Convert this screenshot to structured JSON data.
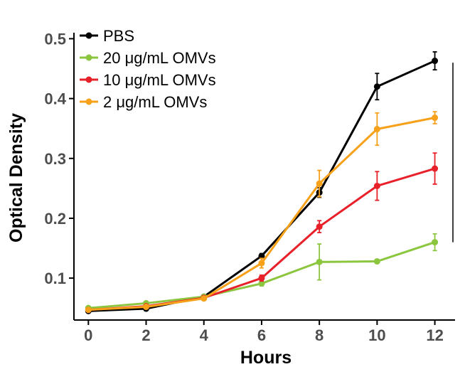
{
  "chart_data": {
    "type": "line",
    "xlabel": "Hours",
    "ylabel": "Optical Density",
    "x": [
      0,
      2,
      4,
      6,
      8,
      10,
      12
    ],
    "x_ticks": [
      "0",
      "2",
      "4",
      "6",
      "8",
      "10",
      "12"
    ],
    "y_ticks": [
      "0.1",
      "0.2",
      "0.3",
      "0.4",
      "0.5"
    ],
    "xlim": [
      -0.5,
      12.7
    ],
    "ylim": [
      0.03,
      0.51
    ],
    "grid": false,
    "legend_position": "top-left",
    "series": [
      {
        "name": "PBS",
        "color": "#000000",
        "values": [
          0.045,
          0.049,
          0.069,
          0.137,
          0.243,
          0.42,
          0.463
        ],
        "errors": [
          0.002,
          0.002,
          0.003,
          0.004,
          0.008,
          0.022,
          0.015
        ]
      },
      {
        "name": "20 μg/mL OMVs",
        "color": "#8cc63f",
        "values": [
          0.05,
          0.058,
          0.069,
          0.091,
          0.127,
          0.128,
          0.16
        ],
        "errors": [
          0.002,
          0.003,
          0.003,
          0.004,
          0.03,
          0.003,
          0.014
        ]
      },
      {
        "name": "10 μg/mL OMVs",
        "color": "#e8202a",
        "values": [
          0.047,
          0.053,
          0.067,
          0.1,
          0.186,
          0.254,
          0.283
        ],
        "errors": [
          0.002,
          0.002,
          0.003,
          0.005,
          0.01,
          0.024,
          0.026
        ]
      },
      {
        "name": "2 μg/mL OMVs",
        "color": "#f7a11a",
        "values": [
          0.047,
          0.052,
          0.066,
          0.125,
          0.258,
          0.349,
          0.368
        ],
        "errors": [
          0.002,
          0.002,
          0.003,
          0.008,
          0.022,
          0.027,
          0.01
        ]
      }
    ],
    "annotation": {
      "text": "****",
      "y_range": [
        0.16,
        0.46
      ]
    }
  }
}
